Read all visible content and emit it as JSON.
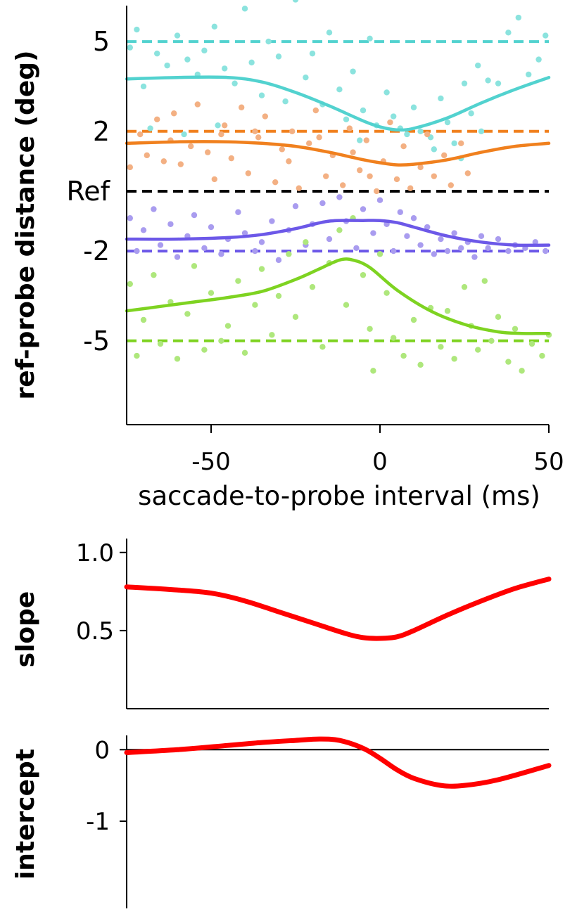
{
  "chart_data": [
    {
      "type": "scatter",
      "panel": "main",
      "title": "",
      "xlabel": "saccade-to-probe interval (ms)",
      "ylabel": "ref-probe distance (deg)",
      "xlim": [
        -75,
        50
      ],
      "ylim": [
        -7.8,
        6.2
      ],
      "xticks": [
        -50,
        0,
        50
      ],
      "xtick_labels": [
        "-50",
        "0",
        "50"
      ],
      "yticks": [
        5,
        2,
        0,
        -2,
        -5
      ],
      "ytick_labels": [
        "5",
        "2",
        "Ref",
        "-2",
        "-5"
      ],
      "series": [
        {
          "name": "+5",
          "color": "#52d2cf",
          "point_color": "#8be3de",
          "reference": 5,
          "fit_x": [
            -75,
            -60,
            -45,
            -35,
            -25,
            -15,
            -5,
            0,
            5,
            10,
            20,
            30,
            40,
            50
          ],
          "fit_y": [
            3.75,
            3.8,
            3.8,
            3.65,
            3.3,
            2.85,
            2.35,
            2.15,
            2.05,
            2.1,
            2.45,
            2.95,
            3.4,
            3.8
          ],
          "points": [
            [
              -74,
              4.8
            ],
            [
              -72,
              5.4
            ],
            [
              -70,
              3.5
            ],
            [
              -66,
              4.6
            ],
            [
              -63,
              4.2
            ],
            [
              -60,
              5.2
            ],
            [
              -57,
              4.4
            ],
            [
              -54,
              3.9
            ],
            [
              -52,
              4.7
            ],
            [
              -49,
              5.5
            ],
            [
              -46,
              4.1
            ],
            [
              -43,
              3.6
            ],
            [
              -40,
              6.1
            ],
            [
              -38,
              4.3
            ],
            [
              -35,
              3.2
            ],
            [
              -33,
              5.0
            ],
            [
              -30,
              4.5
            ],
            [
              -28,
              3.0
            ],
            [
              -25,
              6.4
            ],
            [
              -22,
              3.8
            ],
            [
              -20,
              4.6
            ],
            [
              -17,
              2.9
            ],
            [
              -15,
              5.3
            ],
            [
              -12,
              3.4
            ],
            [
              -10,
              2.4
            ],
            [
              -8,
              4.0
            ],
            [
              -5,
              2.7
            ],
            [
              -3,
              5.1
            ],
            [
              -1,
              2.2
            ],
            [
              2,
              3.3
            ],
            [
              4,
              2.5
            ],
            [
              6,
              2.1
            ],
            [
              8,
              1.9
            ],
            [
              10,
              2.8
            ],
            [
              12,
              2.0
            ],
            [
              15,
              1.8
            ],
            [
              18,
              3.1
            ],
            [
              20,
              2.3
            ],
            [
              22,
              1.6
            ],
            [
              25,
              3.6
            ],
            [
              27,
              2.6
            ],
            [
              29,
              4.2
            ],
            [
              32,
              3.7
            ],
            [
              35,
              3.6
            ],
            [
              38,
              5.3
            ],
            [
              41,
              5.8
            ],
            [
              44,
              3.9
            ],
            [
              47,
              4.4
            ],
            [
              49,
              5.2
            ],
            [
              -68,
              2.1
            ],
            [
              -58,
              1.9
            ],
            [
              -48,
              2.2
            ],
            [
              -6,
              1.7
            ],
            [
              16,
              1.4
            ],
            [
              24,
              1.1
            ],
            [
              30,
              2.0
            ]
          ]
        },
        {
          "name": "+2",
          "color": "#f0801e",
          "point_color": "#f3b083",
          "reference": 2,
          "fit_x": [
            -75,
            -60,
            -45,
            -35,
            -25,
            -15,
            -5,
            0,
            5,
            10,
            20,
            30,
            40,
            50
          ],
          "fit_y": [
            1.6,
            1.65,
            1.65,
            1.6,
            1.5,
            1.3,
            1.05,
            0.95,
            0.88,
            0.9,
            1.05,
            1.3,
            1.5,
            1.6
          ],
          "points": [
            [
              -74,
              0.8
            ],
            [
              -71,
              1.9
            ],
            [
              -69,
              1.2
            ],
            [
              -66,
              2.4
            ],
            [
              -64,
              1.0
            ],
            [
              -61,
              2.6
            ],
            [
              -59,
              0.9
            ],
            [
              -56,
              1.5
            ],
            [
              -54,
              2.9
            ],
            [
              -51,
              1.3
            ],
            [
              -49,
              0.4
            ],
            [
              -46,
              2.2
            ],
            [
              -44,
              1.1
            ],
            [
              -41,
              2.8
            ],
            [
              -39,
              0.6
            ],
            [
              -36,
              1.8
            ],
            [
              -34,
              2.5
            ],
            [
              -31,
              0.3
            ],
            [
              -29,
              1.4
            ],
            [
              -26,
              2.0
            ],
            [
              -24,
              0.1
            ],
            [
              -21,
              1.6
            ],
            [
              -19,
              2.7
            ],
            [
              -16,
              0.5
            ],
            [
              -14,
              1.2
            ],
            [
              -11,
              0.2
            ],
            [
              -9,
              2.1
            ],
            [
              -6,
              0.7
            ],
            [
              -4,
              1.7
            ],
            [
              -1,
              0.0
            ],
            [
              1,
              1.0
            ],
            [
              3,
              2.3
            ],
            [
              5,
              0.4
            ],
            [
              7,
              1.5
            ],
            [
              9,
              0.1
            ],
            [
              12,
              0.8
            ],
            [
              14,
              1.9
            ],
            [
              16,
              0.5
            ],
            [
              19,
              1.2
            ],
            [
              21,
              0.2
            ],
            [
              24,
              1.6
            ],
            [
              26,
              0.6
            ],
            [
              -62,
              1.7
            ],
            [
              -47,
              1.9
            ],
            [
              -37,
              2.0
            ],
            [
              -27,
              1.0
            ],
            [
              -18,
              1.8
            ],
            [
              -8,
              1.3
            ],
            [
              -3,
              0.5
            ]
          ]
        },
        {
          "name": "-2",
          "color": "#6c58e8",
          "point_color": "#a99cef",
          "reference": -2,
          "fit_x": [
            -75,
            -60,
            -45,
            -35,
            -25,
            -15,
            -5,
            0,
            5,
            10,
            20,
            30,
            40,
            50
          ],
          "fit_y": [
            -1.6,
            -1.6,
            -1.55,
            -1.45,
            -1.25,
            -1.0,
            -0.98,
            -0.98,
            -1.05,
            -1.2,
            -1.5,
            -1.7,
            -1.8,
            -1.8
          ],
          "points": [
            [
              -74,
              -0.9
            ],
            [
              -72,
              -2.0
            ],
            [
              -70,
              -1.3
            ],
            [
              -67,
              -0.6
            ],
            [
              -65,
              -1.8
            ],
            [
              -62,
              -1.1
            ],
            [
              -60,
              -2.2
            ],
            [
              -57,
              -1.5
            ],
            [
              -55,
              -0.8
            ],
            [
              -52,
              -1.9
            ],
            [
              -50,
              -1.2
            ],
            [
              -47,
              -2.1
            ],
            [
              -45,
              -1.6
            ],
            [
              -42,
              -0.7
            ],
            [
              -40,
              -1.4
            ],
            [
              -37,
              -2.0
            ],
            [
              -35,
              -1.7
            ],
            [
              -32,
              -1.0
            ],
            [
              -30,
              -2.3
            ],
            [
              -27,
              -1.3
            ],
            [
              -25,
              -0.5
            ],
            [
              -22,
              -1.8
            ],
            [
              -20,
              -1.1
            ],
            [
              -17,
              -0.4
            ],
            [
              -15,
              -1.6
            ],
            [
              -12,
              -0.2
            ],
            [
              -10,
              -1.0
            ],
            [
              -7,
              -1.9
            ],
            [
              -5,
              -0.6
            ],
            [
              -2,
              -1.4
            ],
            [
              0,
              -0.3
            ],
            [
              2,
              -1.1
            ],
            [
              4,
              -2.0
            ],
            [
              6,
              -0.7
            ],
            [
              8,
              -1.5
            ],
            [
              10,
              -0.9
            ],
            [
              12,
              -1.8
            ],
            [
              14,
              -1.2
            ],
            [
              16,
              -2.1
            ],
            [
              18,
              -1.6
            ],
            [
              20,
              -2.0
            ],
            [
              22,
              -1.4
            ],
            [
              24,
              -1.9
            ],
            [
              26,
              -1.7
            ],
            [
              28,
              -2.2
            ],
            [
              30,
              -1.5
            ],
            [
              32,
              -1.9
            ],
            [
              35,
              -1.6
            ],
            [
              38,
              -2.0
            ],
            [
              40,
              -1.8
            ],
            [
              43,
              -1.9
            ],
            [
              46,
              -1.7
            ],
            [
              49,
              -2.0
            ]
          ]
        },
        {
          "name": "-5",
          "color": "#7ed321",
          "point_color": "#aee77c",
          "reference": -5,
          "fit_x": [
            -75,
            -65,
            -55,
            -45,
            -35,
            -25,
            -18,
            -12,
            -8,
            -3,
            5,
            15,
            25,
            35,
            42,
            50
          ],
          "fit_y": [
            -4.0,
            -3.85,
            -3.7,
            -3.55,
            -3.35,
            -2.95,
            -2.6,
            -2.3,
            -2.3,
            -2.55,
            -3.3,
            -4.0,
            -4.45,
            -4.7,
            -4.75,
            -4.75
          ],
          "points": [
            [
              -74,
              -3.1
            ],
            [
              -72,
              -5.5
            ],
            [
              -70,
              -4.3
            ],
            [
              -67,
              -2.8
            ],
            [
              -65,
              -5.1
            ],
            [
              -62,
              -3.7
            ],
            [
              -60,
              -5.6
            ],
            [
              -57,
              -4.1
            ],
            [
              -55,
              -2.5
            ],
            [
              -52,
              -5.3
            ],
            [
              -50,
              -3.4
            ],
            [
              -47,
              -5.0
            ],
            [
              -45,
              -4.5
            ],
            [
              -42,
              -3.0
            ],
            [
              -40,
              -5.4
            ],
            [
              -37,
              -3.8
            ],
            [
              -35,
              -2.6
            ],
            [
              -32,
              -4.8
            ],
            [
              -30,
              -3.5
            ],
            [
              -27,
              -2.1
            ],
            [
              -25,
              -4.2
            ],
            [
              -22,
              -1.7
            ],
            [
              -20,
              -3.2
            ],
            [
              -17,
              -5.2
            ],
            [
              -15,
              -2.4
            ],
            [
              -12,
              -1.3
            ],
            [
              -10,
              -3.8
            ],
            [
              -8,
              -0.9
            ],
            [
              -5,
              -2.8
            ],
            [
              -3,
              -4.6
            ],
            [
              -2,
              -6.0
            ],
            [
              0,
              -2.1
            ],
            [
              2,
              -3.4
            ],
            [
              4,
              -4.9
            ],
            [
              7,
              -5.5
            ],
            [
              10,
              -4.3
            ],
            [
              12,
              -5.8
            ],
            [
              15,
              -3.9
            ],
            [
              18,
              -5.2
            ],
            [
              20,
              -4.0
            ],
            [
              22,
              -5.6
            ],
            [
              25,
              -3.2
            ],
            [
              27,
              -4.5
            ],
            [
              29,
              -5.3
            ],
            [
              31,
              -3.0
            ],
            [
              33,
              -5.0
            ],
            [
              35,
              -4.2
            ],
            [
              38,
              -5.7
            ],
            [
              40,
              -4.6
            ],
            [
              42,
              -6.0
            ],
            [
              45,
              -5.1
            ],
            [
              48,
              -5.5
            ],
            [
              50,
              -4.8
            ]
          ]
        }
      ]
    },
    {
      "type": "line",
      "panel": "slope",
      "title": "",
      "xlabel": "",
      "ylabel": "slope",
      "xlim": [
        -75,
        50
      ],
      "ylim": [
        0,
        1.08
      ],
      "yticks": [
        1.0,
        0.5
      ],
      "ytick_labels": [
        "1.0",
        "0.5"
      ],
      "color": "#ff0000",
      "x": [
        -75,
        -60,
        -50,
        -40,
        -30,
        -20,
        -10,
        -5,
        0,
        5,
        10,
        20,
        30,
        40,
        50
      ],
      "y": [
        0.78,
        0.76,
        0.74,
        0.69,
        0.62,
        0.55,
        0.48,
        0.455,
        0.45,
        0.46,
        0.5,
        0.6,
        0.69,
        0.77,
        0.83
      ]
    },
    {
      "type": "line",
      "panel": "intercept",
      "title": "",
      "xlabel": "",
      "ylabel": "intercept",
      "xlim": [
        -75,
        50
      ],
      "ylim": [
        -2.2,
        0.18
      ],
      "yticks": [
        0,
        -1
      ],
      "ytick_labels": [
        "0",
        "-1"
      ],
      "zero_line": true,
      "color": "#ff0000",
      "x": [
        -75,
        -60,
        -45,
        -35,
        -25,
        -18,
        -12,
        -5,
        0,
        5,
        10,
        18,
        25,
        35,
        50
      ],
      "y": [
        -0.04,
        0.0,
        0.06,
        0.1,
        0.13,
        0.15,
        0.13,
        0.02,
        -0.12,
        -0.28,
        -0.4,
        -0.5,
        -0.5,
        -0.42,
        -0.22
      ]
    }
  ]
}
